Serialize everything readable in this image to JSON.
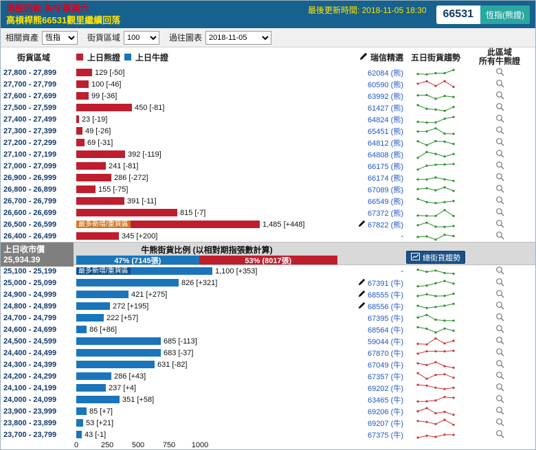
{
  "header": {
    "title_line1": "港股回軟 失守兩萬六",
    "title_line2": "高槓桿熊66531觀里繼續回落",
    "last_update": "最後更新時間: 2018-11-05 18:30",
    "code": "66531",
    "code_tag": "恆指(熊證)"
  },
  "controls": {
    "related_asset_label": "相關資產",
    "related_asset_value": "恆指",
    "region_label": "街貨區域",
    "region_value": "100",
    "history_label": "過往圖表",
    "history_value": "2018-11-05"
  },
  "columns": {
    "region": "街貨區域",
    "legend_bear": "上日熊證",
    "legend_bull": "上日牛證",
    "cs_pick": "瑞信精選",
    "five_day_trend": "五日街貨趨勢",
    "all_line1": "此區域",
    "all_line2": "所有牛熊證"
  },
  "labels": {
    "heavy_zone": "最多新增/重貨區"
  },
  "middle": {
    "close_label": "上日收市價",
    "close_value": "25,934.39",
    "ratio_title": "牛熊街貨比例 (以相對期指張數計算)",
    "bull_share_label": "47% (7145張)",
    "bear_share_label": "53% (8017張)",
    "bull_share_pct": 47,
    "bear_share_pct": 53,
    "trend_button": "總街貨趨勢"
  },
  "axis_ticks": [
    0,
    250,
    500,
    750,
    1000
  ],
  "colors": {
    "header_blue": "#16618e",
    "bear_bar": "#bf1e2e",
    "bull_bar": "#1a75bb",
    "trend_up_green": "#2a8f2a",
    "trend_down_red": "#cc3333",
    "accent_teal": "#2aa7a0",
    "highlight_badge_bear": "#cf7a28",
    "highlight_badge_bull": "#0f4e8f"
  },
  "bear_rows": [
    {
      "range": "27,800 - 27,899",
      "value": 129,
      "label": "129 [-50]",
      "cs": "62084 (熊)",
      "cs_pen": false,
      "badge": false,
      "trend": "green"
    },
    {
      "range": "27,700 - 27,799",
      "value": 100,
      "label": "100 [-46]",
      "cs": "60590 (熊)",
      "cs_pen": false,
      "badge": false,
      "trend": "red"
    },
    {
      "range": "27,600 - 27,699",
      "value": 99,
      "label": "99 [-36]",
      "cs": "63992 (熊)",
      "cs_pen": false,
      "badge": false,
      "trend": "green"
    },
    {
      "range": "27,500 - 27,599",
      "value": 450,
      "label": "450 [-81]",
      "cs": "61427 (熊)",
      "cs_pen": false,
      "badge": false,
      "trend": "green"
    },
    {
      "range": "27,400 - 27,499",
      "value": 23,
      "label": "23 [-19]",
      "cs": "64824 (熊)",
      "cs_pen": false,
      "badge": false,
      "trend": "green"
    },
    {
      "range": "27,300 - 27,399",
      "value": 49,
      "label": "49 [-26]",
      "cs": "65451 (熊)",
      "cs_pen": false,
      "badge": false,
      "trend": "green"
    },
    {
      "range": "27,200 - 27,299",
      "value": 69,
      "label": "69 [-31]",
      "cs": "64812 (熊)",
      "cs_pen": false,
      "badge": false,
      "trend": "green"
    },
    {
      "range": "27,100 - 27,199",
      "value": 392,
      "label": "392 [-119]",
      "cs": "64808 (熊)",
      "cs_pen": false,
      "badge": false,
      "trend": "green"
    },
    {
      "range": "27,000 - 27,099",
      "value": 241,
      "label": "241 [-81]",
      "cs": "66175 (熊)",
      "cs_pen": false,
      "badge": false,
      "trend": "green"
    },
    {
      "range": "26,900 - 26,999",
      "value": 286,
      "label": "286 [-272]",
      "cs": "66174 (熊)",
      "cs_pen": false,
      "badge": false,
      "trend": "green"
    },
    {
      "range": "26,800 - 26,899",
      "value": 155,
      "label": "155 [-75]",
      "cs": "67089 (熊)",
      "cs_pen": false,
      "badge": false,
      "trend": "green"
    },
    {
      "range": "26,700 - 26,799",
      "value": 391,
      "label": "391 [-11]",
      "cs": "66549 (熊)",
      "cs_pen": false,
      "badge": false,
      "trend": "green"
    },
    {
      "range": "26,600 - 26,699",
      "value": 815,
      "label": "815 [-7]",
      "cs": "67372 (熊)",
      "cs_pen": false,
      "badge": false,
      "trend": "green"
    },
    {
      "range": "26,500 - 26,599",
      "value": 1485,
      "label": "1,485 [+448]",
      "cs": "67822 (熊)",
      "cs_pen": true,
      "badge": true,
      "trend": "green"
    },
    {
      "range": "26,400 - 26,499",
      "value": 345,
      "label": "345 [+200]",
      "cs": "-",
      "cs_pen": false,
      "badge": false,
      "trend": "green"
    }
  ],
  "bull_rows": [
    {
      "range": "25,100 - 25,199",
      "value": 1100,
      "label": "1,100 [+353]",
      "cs": "-",
      "cs_pen": false,
      "badge": true,
      "trend": "green"
    },
    {
      "range": "25,000 - 25,099",
      "value": 826,
      "label": "826 [+321]",
      "cs": "67391 (牛)",
      "cs_pen": true,
      "badge": false,
      "trend": "green"
    },
    {
      "range": "24,900 - 24,999",
      "value": 421,
      "label": "421 [+275]",
      "cs": "68555 (牛)",
      "cs_pen": true,
      "badge": false,
      "trend": "green"
    },
    {
      "range": "24,800 - 24,899",
      "value": 272,
      "label": "272 [+195]",
      "cs": "68556 (牛)",
      "cs_pen": true,
      "badge": false,
      "trend": "green"
    },
    {
      "range": "24,700 - 24,799",
      "value": 222,
      "label": "222 [+57]",
      "cs": "67395 (牛)",
      "cs_pen": false,
      "badge": false,
      "trend": "green"
    },
    {
      "range": "24,600 - 24,699",
      "value": 86,
      "label": "86 [+86]",
      "cs": "68564 (牛)",
      "cs_pen": false,
      "badge": false,
      "trend": "green"
    },
    {
      "range": "24,500 - 24,599",
      "value": 685,
      "label": "685 [-113]",
      "cs": "59044 (牛)",
      "cs_pen": false,
      "badge": false,
      "trend": "red"
    },
    {
      "range": "24,400 - 24,499",
      "value": 683,
      "label": "683 [-37]",
      "cs": "67870 (牛)",
      "cs_pen": false,
      "badge": false,
      "trend": "red"
    },
    {
      "range": "24,300 - 24,399",
      "value": 631,
      "label": "631 [-82]",
      "cs": "67049 (牛)",
      "cs_pen": false,
      "badge": false,
      "trend": "red"
    },
    {
      "range": "24,200 - 24,299",
      "value": 286,
      "label": "286 [+43]",
      "cs": "67357 (牛)",
      "cs_pen": false,
      "badge": false,
      "trend": "red"
    },
    {
      "range": "24,100 - 24,199",
      "value": 237,
      "label": "237 [+4]",
      "cs": "69202 (牛)",
      "cs_pen": false,
      "badge": false,
      "trend": "red"
    },
    {
      "range": "24,000 - 24,099",
      "value": 351,
      "label": "351 [+58]",
      "cs": "63465 (牛)",
      "cs_pen": false,
      "badge": false,
      "trend": "red"
    },
    {
      "range": "23,900 - 23,999",
      "value": 85,
      "label": "85 [+7]",
      "cs": "69206 (牛)",
      "cs_pen": false,
      "badge": false,
      "trend": "red"
    },
    {
      "range": "23,800 - 23,899",
      "value": 53,
      "label": "53 [+21]",
      "cs": "69207 (牛)",
      "cs_pen": false,
      "badge": false,
      "trend": "red"
    },
    {
      "range": "23,700 - 23,799",
      "value": 43,
      "label": "43 [-1]",
      "cs": "67375 (牛)",
      "cs_pen": false,
      "badge": false,
      "trend": "red"
    }
  ]
}
